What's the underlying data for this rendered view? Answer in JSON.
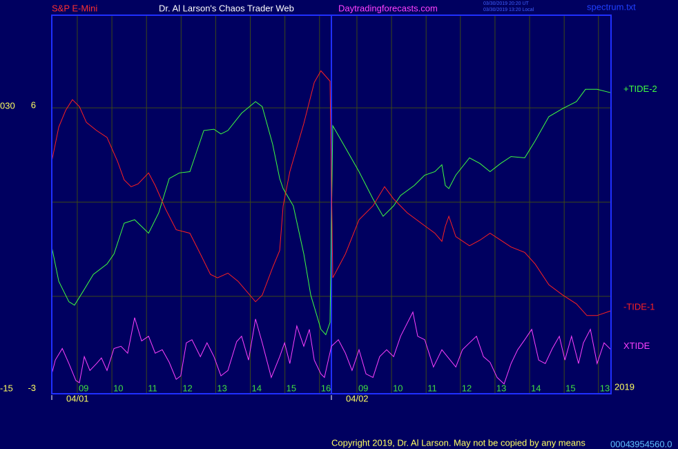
{
  "chart_data": {
    "type": "line",
    "title": "Dr. Al Larson's Chaos Trader Web",
    "symbol": "S&P E-Mini",
    "website": "Daytradingforecasts.com",
    "timestamps": [
      "03/30/2019 20:20 UT",
      "03/30/2019 13:20 Local"
    ],
    "file": "spectrum.txt",
    "year": "2019",
    "dates": [
      {
        "value": 0,
        "label": "04/01"
      },
      {
        "value": 8,
        "label": "04/02"
      }
    ],
    "copyright": "Copyright 2019, Dr. Al Larson. May not be copied by any means",
    "footer_code": "0004",
    "footer_value": "3954560.0",
    "grid": true,
    "xlim": [
      0,
      16
    ],
    "xticks": [
      {
        "value": 0.73,
        "label": "09"
      },
      {
        "value": 1.72,
        "label": "10"
      },
      {
        "value": 2.71,
        "label": "11"
      },
      {
        "value": 3.7,
        "label": "12"
      },
      {
        "value": 4.69,
        "label": "13"
      },
      {
        "value": 5.68,
        "label": "14"
      },
      {
        "value": 6.67,
        "label": "15"
      },
      {
        "value": 7.66,
        "label": "16"
      },
      {
        "value": 8.73,
        "label": "09"
      },
      {
        "value": 9.72,
        "label": "10"
      },
      {
        "value": 10.71,
        "label": "11"
      },
      {
        "value": 11.69,
        "label": "12"
      },
      {
        "value": 12.68,
        "label": "13"
      },
      {
        "value": 13.67,
        "label": "14"
      },
      {
        "value": 14.66,
        "label": "15"
      },
      {
        "value": 15.64,
        "label": "13"
      }
    ],
    "ylim": [
      -3.1,
      8.95
    ],
    "yticks": [
      6,
      -3
    ],
    "ygrid": [
      6,
      3,
      0
    ],
    "y2lim": [
      -15.44,
      44.85
    ],
    "y2ticks": [
      {
        "value": 30,
        "label": "030"
      },
      -15
    ],
    "series": [
      {
        "name": "+TIDE-2",
        "color": "#40ff40",
        "x": [
          0,
          0.2,
          0.49,
          0.65,
          0.89,
          1.19,
          1.58,
          1.78,
          2.07,
          2.37,
          2.77,
          3.06,
          3.36,
          3.65,
          3.95,
          4.35,
          4.64,
          4.84,
          5.04,
          5.43,
          5.83,
          6.02,
          6.32,
          6.52,
          6.62,
          6.91,
          7.21,
          7.41,
          7.7,
          7.84,
          7.96,
          8.04,
          8.4,
          8.79,
          9.19,
          9.48,
          9.78,
          9.98,
          10.37,
          10.67,
          10.96,
          11.16,
          11.26,
          11.36,
          11.56,
          11.95,
          12.25,
          12.54,
          12.84,
          13.14,
          13.53,
          13.83,
          14.22,
          14.62,
          15.01,
          15.27,
          15.6,
          16
        ],
        "values": [
          1.57,
          0.48,
          -0.17,
          -0.28,
          0.15,
          0.7,
          1.03,
          1.35,
          2.33,
          2.44,
          2.01,
          2.66,
          3.75,
          3.93,
          3.97,
          5.28,
          5.32,
          5.17,
          5.28,
          5.83,
          6.2,
          6.04,
          4.84,
          3.75,
          3.43,
          2.88,
          1.35,
          0.04,
          -1.05,
          -1.22,
          -0.83,
          5.43,
          4.73,
          3.97,
          3.1,
          2.55,
          2.88,
          3.21,
          3.53,
          3.86,
          3.97,
          4.19,
          3.53,
          3.43,
          3.86,
          4.41,
          4.23,
          3.97,
          4.23,
          4.45,
          4.41,
          4.95,
          5.72,
          5.98,
          6.2,
          6.59,
          6.59,
          6.48
        ]
      },
      {
        "name": "-TIDE-1",
        "color": "#ff2020",
        "x": [
          0,
          0.2,
          0.4,
          0.59,
          0.79,
          0.99,
          1.28,
          1.58,
          1.88,
          2.07,
          2.27,
          2.47,
          2.77,
          2.96,
          3.26,
          3.56,
          3.95,
          4.25,
          4.54,
          4.74,
          5.04,
          5.33,
          5.83,
          6.02,
          6.32,
          6.52,
          6.62,
          6.81,
          7.21,
          7.51,
          7.7,
          7.96,
          8.04,
          8.4,
          8.79,
          9.19,
          9.52,
          9.78,
          10.17,
          10.57,
          10.96,
          11.16,
          11.26,
          11.36,
          11.56,
          11.95,
          12.25,
          12.54,
          12.84,
          13.14,
          13.53,
          13.83,
          14.22,
          14.62,
          15.01,
          15.31,
          15.6,
          16
        ],
        "values": [
          4.3,
          5.39,
          5.93,
          6.26,
          6.04,
          5.54,
          5.28,
          5.06,
          4.3,
          3.71,
          3.49,
          3.58,
          3.93,
          3.53,
          2.77,
          2.12,
          2.01,
          1.35,
          0.7,
          0.59,
          0.74,
          0.48,
          -0.17,
          0.04,
          0.92,
          1.46,
          2.88,
          3.97,
          5.5,
          6.81,
          7.18,
          6.85,
          0.59,
          1.35,
          2.44,
          2.88,
          3.49,
          3.1,
          2.66,
          2.33,
          2.01,
          1.75,
          2.23,
          2.55,
          1.9,
          1.61,
          1.79,
          2.01,
          1.79,
          1.57,
          1.4,
          1.03,
          0.37,
          0.04,
          -0.24,
          -0.61,
          -0.61,
          -0.46
        ]
      },
      {
        "name": "XTIDE",
        "color": "#ff40ff",
        "x": [
          0,
          0.1,
          0.3,
          0.49,
          0.69,
          0.79,
          0.93,
          1.09,
          1.28,
          1.42,
          1.58,
          1.78,
          1.98,
          2.17,
          2.37,
          2.57,
          2.77,
          2.96,
          3.16,
          3.36,
          3.56,
          3.69,
          3.85,
          4.01,
          4.25,
          4.44,
          4.64,
          4.84,
          5.04,
          5.29,
          5.43,
          5.63,
          5.83,
          6.02,
          6.28,
          6.52,
          6.66,
          6.81,
          7.01,
          7.21,
          7.37,
          7.51,
          7.7,
          7.8,
          8.0,
          8.2,
          8.4,
          8.59,
          8.79,
          8.99,
          9.19,
          9.38,
          9.58,
          9.78,
          9.98,
          10.13,
          10.33,
          10.47,
          10.67,
          10.92,
          11.16,
          11.4,
          11.56,
          11.75,
          11.95,
          12.15,
          12.35,
          12.54,
          12.74,
          12.94,
          13.14,
          13.33,
          13.53,
          13.73,
          13.93,
          14.12,
          14.32,
          14.52,
          14.68,
          14.87,
          15.07,
          15.21,
          15.41,
          15.6,
          15.8,
          16
        ],
        "values": [
          -2.47,
          -2.03,
          -1.66,
          -2.14,
          -2.68,
          -2.75,
          -1.92,
          -2.36,
          -2.14,
          -1.96,
          -2.36,
          -1.66,
          -1.59,
          -1.81,
          -0.68,
          -1.42,
          -1.27,
          -1.81,
          -1.7,
          -2.1,
          -2.64,
          -2.53,
          -1.48,
          -1.38,
          -1.92,
          -1.48,
          -1.92,
          -2.53,
          -2.36,
          -1.44,
          -1.27,
          -2.03,
          -0.72,
          -1.48,
          -2.58,
          -1.92,
          -1.48,
          -2.14,
          -0.94,
          -1.59,
          -1.05,
          -2.03,
          -2.47,
          -2.58,
          -1.59,
          -1.38,
          -1.81,
          -2.36,
          -1.7,
          -2.47,
          -2.58,
          -1.92,
          -1.7,
          -1.92,
          -1.27,
          -0.94,
          -0.5,
          -1.27,
          -1.38,
          -2.25,
          -1.7,
          -2.03,
          -2.25,
          -1.7,
          -1.48,
          -1.27,
          -1.92,
          -2.1,
          -2.58,
          -2.79,
          -2.14,
          -1.7,
          -1.38,
          -1.05,
          -2.03,
          -2.14,
          -1.66,
          -1.27,
          -2.03,
          -1.27,
          -2.14,
          -1.48,
          -1.05,
          -2.14,
          -1.48,
          -1.7
        ]
      }
    ]
  }
}
